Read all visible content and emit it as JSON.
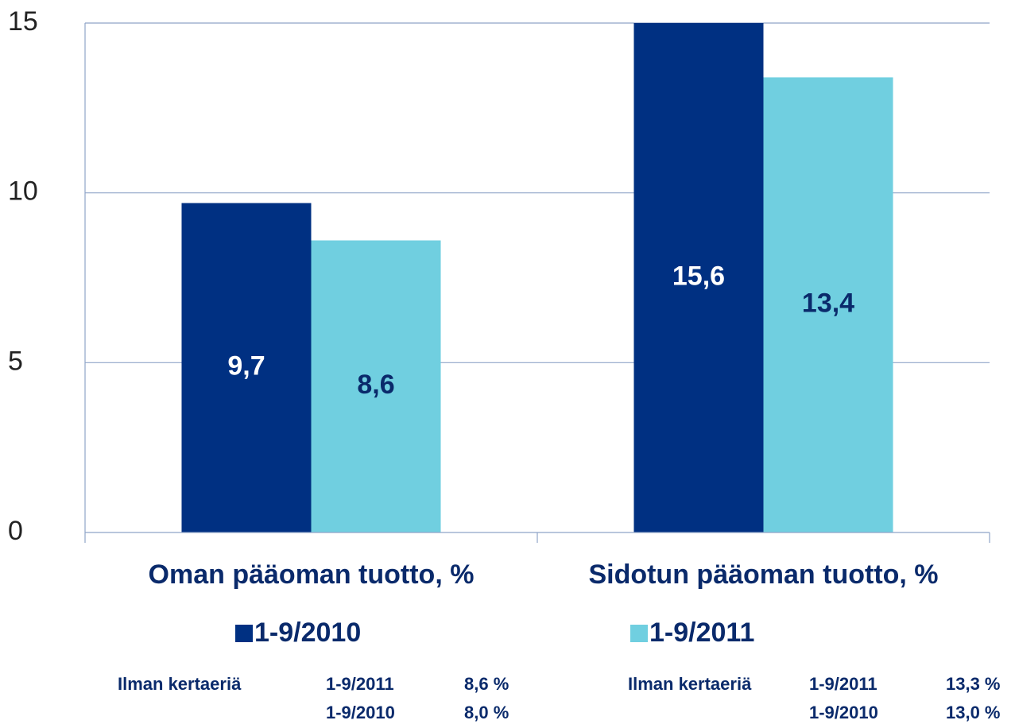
{
  "chart_data": {
    "type": "bar",
    "categories": [
      "Oman pääoman tuotto, %",
      "Sidotun pääoman tuotto, %"
    ],
    "series": [
      {
        "name": "1-9/2010",
        "color": "#003082",
        "values": [
          9.7,
          15.6
        ],
        "value_labels": [
          "9,7",
          "15,6"
        ]
      },
      {
        "name": "1-9/2011",
        "color": "#70cfe0",
        "values": [
          8.6,
          13.4
        ],
        "value_labels": [
          "8,6",
          "13,4"
        ]
      }
    ],
    "ylim": [
      0,
      15
    ],
    "yticks": [
      0,
      5,
      10,
      15
    ],
    "grid": true,
    "notes": [
      {
        "label": "Ilman kertaeriä",
        "rows": [
          [
            "1-9/2011",
            "8,6 %"
          ],
          [
            "1-9/2010",
            "8,0 %"
          ]
        ]
      },
      {
        "label": "Ilman kertaeriä",
        "rows": [
          [
            "1-9/2011",
            "13,3 %"
          ],
          [
            "1-9/2010",
            "13,0 %"
          ]
        ]
      }
    ]
  }
}
